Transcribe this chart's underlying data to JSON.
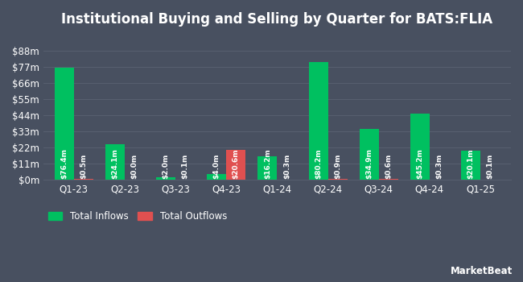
{
  "title": "Institutional Buying and Selling by Quarter for BATS:FLIA",
  "quarters": [
    "Q1-23",
    "Q2-23",
    "Q3-23",
    "Q4-23",
    "Q1-24",
    "Q2-24",
    "Q3-24",
    "Q4-24",
    "Q1-25"
  ],
  "inflows": [
    76.4,
    24.1,
    2.0,
    4.0,
    16.2,
    80.2,
    34.9,
    45.2,
    20.1
  ],
  "outflows": [
    0.5,
    0.0,
    0.1,
    20.6,
    0.3,
    0.9,
    0.6,
    0.3,
    0.1
  ],
  "inflow_labels": [
    "$76.4m",
    "$24.1m",
    "$2.0m",
    "$4.0m",
    "$16.2m",
    "$80.2m",
    "$34.9m",
    "$45.2m",
    "$20.1m"
  ],
  "outflow_labels": [
    "$0.5m",
    "$0.0m",
    "$0.1m",
    "$20.6m",
    "$0.3m",
    "$0.9m",
    "$0.6m",
    "$0.3m",
    "$0.1m"
  ],
  "inflow_color": "#00c060",
  "outflow_color": "#e05050",
  "bg_color": "#485060",
  "text_color": "#ffffff",
  "grid_color": "#586070",
  "bar_width": 0.38,
  "ylim": [
    0,
    99
  ],
  "yticks": [
    0,
    11,
    22,
    33,
    44,
    55,
    66,
    77,
    88
  ],
  "ytick_labels": [
    "$0m",
    "$11m",
    "$22m",
    "$33m",
    "$44m",
    "$55m",
    "$66m",
    "$77m",
    "$88m"
  ],
  "legend_inflow": "Total Inflows",
  "legend_outflow": "Total Outflows",
  "title_fontsize": 12,
  "axis_fontsize": 8.5,
  "label_fontsize": 6.5,
  "legend_fontsize": 8.5
}
